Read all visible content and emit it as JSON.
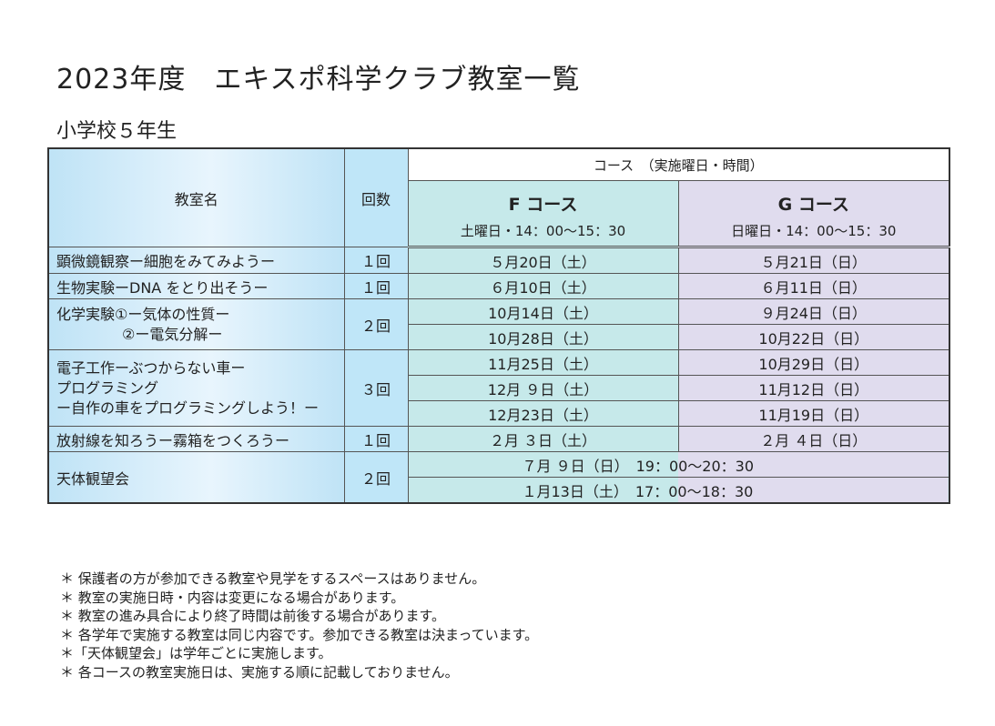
{
  "title": "2023年度　エキスポ科学クラブ教室一覧",
  "subtitle": "小学校５年生",
  "header": {
    "classroom": "教室名",
    "count": "回数",
    "course_span": "コース　（実施曜日・時間）",
    "f_course": "F コース",
    "f_time": "土曜日・14：00～15：30",
    "g_course": "G コース",
    "g_time": "日曜日・14：00～15：30"
  },
  "rows": [
    {
      "name": "顕微鏡観察ー細胞をみてみようー",
      "count": "１回",
      "f": [
        "５月20日（土）"
      ],
      "g": [
        "５月21日（日）"
      ]
    },
    {
      "name": "生物実験ーDNA をとり出そうー",
      "count": "１回",
      "f": [
        "６月10日（土）"
      ],
      "g": [
        "６月11日（日）"
      ]
    },
    {
      "name_lines": [
        "化学実験①ー気体の性質ー",
        "②ー電気分解ー"
      ],
      "count": "２回",
      "f": [
        "10月14日（土）",
        "10月28日（土）"
      ],
      "g": [
        "９月24日（日）",
        "10月22日（日）"
      ]
    },
    {
      "name_lines": [
        "電子工作ーぶつからない車ー",
        "プログラミング",
        "ー自作の車をプログラミングしよう！ー"
      ],
      "count": "３回",
      "f": [
        "11月25日（土）",
        "12月 ９日（土）",
        "12月23日（土）"
      ],
      "g": [
        "10月29日（日）",
        "11月12日（日）",
        "11月19日（日）"
      ]
    },
    {
      "name": "放射線を知ろうー霧箱をつくろうー",
      "count": "１回",
      "f": [
        "２月 ３日（土）"
      ],
      "g": [
        "２月 ４日（日）"
      ]
    },
    {
      "name": "天体観望会",
      "count": "２回",
      "astro": [
        "７月 ９日（日）　19：00～20：30",
        "１月13日（土）　17：00～18：30"
      ]
    }
  ],
  "notes": [
    "＊ 保護者の方が参加できる教室や見学をするスペースはありません。",
    "＊ 教室の実施日時・内容は変更になる場合があります。",
    "＊ 教室の進み具合により終了時間は前後する場合があります。",
    "＊ 各学年で実施する教室は同じ内容です。参加できる教室は決まっています。",
    "＊「天体観望会」は学年ごとに実施します。",
    "＊ 各コースの教室実施日は、実施する順に記載しておりません。"
  ]
}
